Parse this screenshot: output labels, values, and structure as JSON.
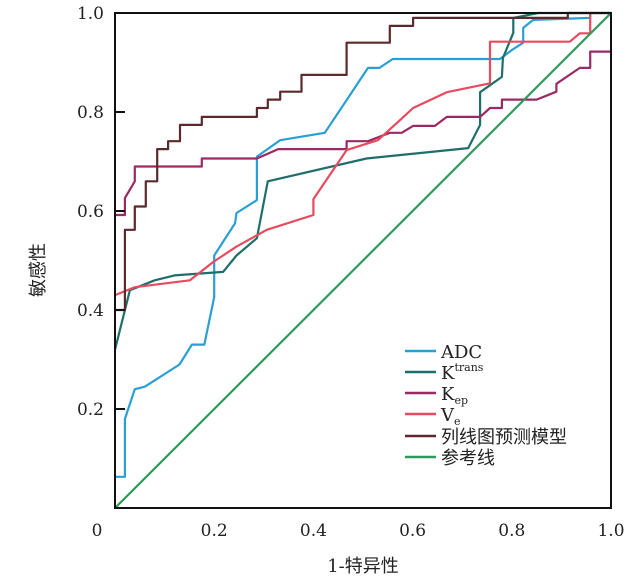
{
  "chart_data": {
    "type": "line",
    "title": "",
    "xlabel": "1-特异性",
    "ylabel": "敏感性",
    "xlim": [
      0,
      1
    ],
    "ylim": [
      0,
      1
    ],
    "origin_label": "0",
    "xticks": [
      "0.2",
      "0.4",
      "0.6",
      "0.8",
      "1.0"
    ],
    "yticks": [
      "0.2",
      "0.4",
      "0.6",
      "0.8",
      "1.0"
    ],
    "xtick_values": [
      0.2,
      0.4,
      0.6,
      0.8,
      1.0
    ],
    "ytick_values": [
      0.2,
      0.4,
      0.6,
      0.8,
      1.0
    ],
    "grid": false,
    "legend_position": "bottom-right",
    "series": [
      {
        "name": "ADC",
        "name_sub": "",
        "name_sup": "",
        "color": "#2a9fd6",
        "x": [
          0,
          0.02,
          0.02,
          0.04,
          0.06,
          0.13,
          0.155,
          0.18,
          0.2,
          0.2,
          0.242,
          0.245,
          0.286,
          0.286,
          0.333,
          0.423,
          0.467,
          0.51,
          0.533,
          0.56,
          0.776,
          0.8,
          0.823,
          0.823,
          0.843,
          0.958,
          0.958
        ],
        "y": [
          0.063,
          0.063,
          0.18,
          0.24,
          0.245,
          0.29,
          0.33,
          0.33,
          0.426,
          0.51,
          0.575,
          0.596,
          0.622,
          0.71,
          0.743,
          0.758,
          0.824,
          0.889,
          0.889,
          0.907,
          0.907,
          0.925,
          0.94,
          0.97,
          0.986,
          0.99,
          1.0
        ]
      },
      {
        "name": "K",
        "name_sub": "",
        "name_sup": "trans",
        "color": "#1f6e6a",
        "x": [
          0,
          0.03,
          0.08,
          0.12,
          0.218,
          0.245,
          0.286,
          0.308,
          0.507,
          0.712,
          0.736,
          0.736,
          0.78,
          0.782,
          0.803,
          0.803,
          0.853,
          1.0
        ],
        "y": [
          0.32,
          0.44,
          0.46,
          0.47,
          0.477,
          0.51,
          0.545,
          0.66,
          0.706,
          0.727,
          0.774,
          0.84,
          0.871,
          0.909,
          0.96,
          0.99,
          1.0,
          1.0
        ]
      },
      {
        "name": "K",
        "name_sub": "ep",
        "name_sup": "",
        "color": "#9b2a64",
        "x": [
          0,
          0.02,
          0.02,
          0.04,
          0.04,
          0.175,
          0.175,
          0.286,
          0.329,
          0.467,
          0.467,
          0.51,
          0.554,
          0.578,
          0.601,
          0.645,
          0.669,
          0.736,
          0.756,
          0.78,
          0.78,
          0.85,
          0.89,
          0.89,
          0.937,
          0.958,
          0.958,
          1.0
        ],
        "y": [
          0.592,
          0.592,
          0.626,
          0.66,
          0.69,
          0.69,
          0.706,
          0.706,
          0.725,
          0.725,
          0.741,
          0.741,
          0.758,
          0.758,
          0.772,
          0.772,
          0.79,
          0.79,
          0.808,
          0.808,
          0.825,
          0.825,
          0.841,
          0.857,
          0.889,
          0.889,
          0.922,
          0.922
        ]
      },
      {
        "name": "V",
        "name_sub": "e",
        "name_sup": "",
        "color": "#e84a5f",
        "x": [
          0,
          0.04,
          0.151,
          0.198,
          0.245,
          0.306,
          0.4,
          0.4,
          0.467,
          0.53,
          0.575,
          0.601,
          0.669,
          0.756,
          0.756,
          0.917,
          0.937,
          0.958,
          0.958
        ],
        "y": [
          0.43,
          0.446,
          0.46,
          0.497,
          0.528,
          0.562,
          0.592,
          0.624,
          0.723,
          0.743,
          0.784,
          0.808,
          0.84,
          0.858,
          0.942,
          0.942,
          0.959,
          0.959,
          1.0
        ]
      },
      {
        "name": "列线图预测模型",
        "name_sub": "",
        "name_sup": "",
        "color": "#5a2a2e",
        "x": [
          0,
          0.02,
          0.02,
          0.04,
          0.04,
          0.062,
          0.062,
          0.085,
          0.085,
          0.107,
          0.107,
          0.131,
          0.131,
          0.175,
          0.175,
          0.286,
          0.286,
          0.308,
          0.308,
          0.333,
          0.333,
          0.376,
          0.376,
          0.467,
          0.467,
          0.554,
          0.554,
          0.601,
          0.601,
          0.913,
          0.913,
          1.0
        ],
        "y": [
          0.4,
          0.4,
          0.562,
          0.562,
          0.609,
          0.609,
          0.66,
          0.66,
          0.725,
          0.725,
          0.741,
          0.741,
          0.774,
          0.774,
          0.79,
          0.79,
          0.808,
          0.808,
          0.825,
          0.825,
          0.841,
          0.841,
          0.875,
          0.875,
          0.94,
          0.94,
          0.974,
          0.974,
          0.99,
          0.99,
          1.0,
          1.0
        ]
      },
      {
        "name": "参考线",
        "name_sub": "",
        "name_sup": "",
        "color": "#2e9a5a",
        "x": [
          0,
          1
        ],
        "y": [
          0,
          1
        ]
      }
    ]
  }
}
